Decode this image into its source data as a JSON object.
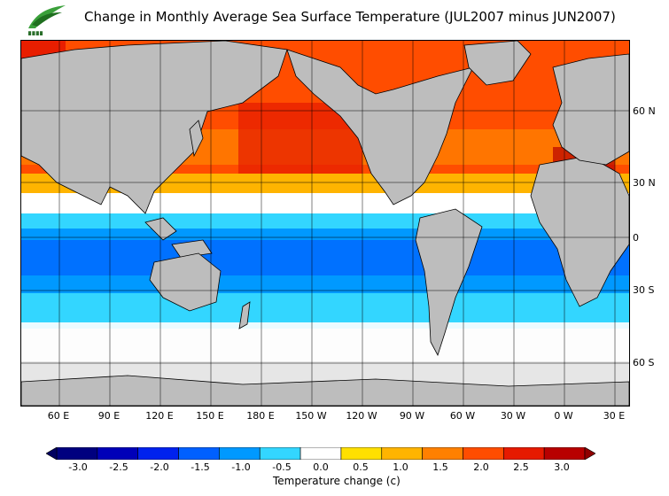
{
  "title": "Change in Monthly Average Sea Surface Temperature (JUL2007 minus JUN2007)",
  "logo": {
    "name": "observatory-logo",
    "colors": [
      "#3aa03a",
      "#1f6f1f"
    ]
  },
  "map": {
    "latitude_labels": [
      "60 N",
      "30 N",
      "0",
      "30 S",
      "60 S"
    ],
    "longitude_labels": [
      "60 E",
      "90 E",
      "120 E",
      "150 E",
      "180 E",
      "150 W",
      "120 W",
      "90 W",
      "60 W",
      "30 W",
      "0 W",
      "30 E"
    ],
    "land_color": "#bdbdbd",
    "ice_color": "#e6e6e6"
  },
  "legend": {
    "caption": "Temperature change  (c)",
    "tick_labels": [
      "-3.0",
      "-2.5",
      "-2.0",
      "-1.5",
      "-1.0",
      "-0.5",
      "0.0",
      "0.5",
      "1.0",
      "1.5",
      "2.0",
      "2.5",
      "3.0"
    ],
    "colors": [
      "#00007f",
      "#0000b8",
      "#0022ee",
      "#0060ff",
      "#0099ff",
      "#33d6ff",
      "#ffffff",
      "#ffe000",
      "#ffb400",
      "#ff8000",
      "#ff4d00",
      "#e61a00",
      "#b80000"
    ]
  }
}
